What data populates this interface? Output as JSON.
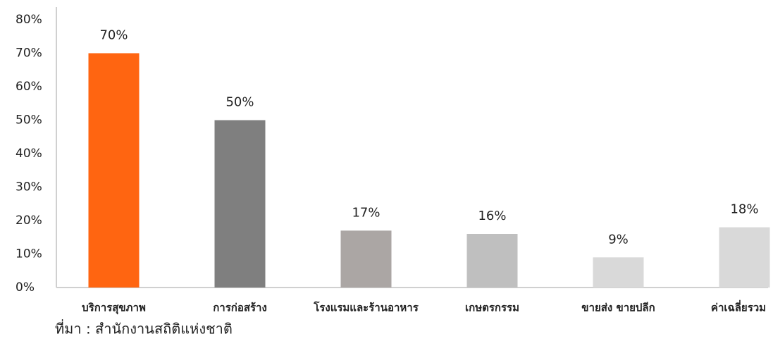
{
  "chart_data": {
    "type": "bar",
    "categories": [
      "บริการสุขภาพ",
      "การก่อสร้าง",
      "โรงแรมและร้านอาหาร",
      "เกษตรกรรม",
      "ขายส่ง ขายปลีก",
      "ค่าเฉลี่ยรวม"
    ],
    "values": [
      70,
      50,
      17,
      16,
      9,
      18
    ],
    "value_labels": [
      "70%",
      "50%",
      "17%",
      "16%",
      "9%",
      "18%"
    ],
    "colors": [
      "#ff6511",
      "#7f7f7f",
      "#aba6a4",
      "#bfbfbf",
      "#d9d9d9",
      "#d9d9d9"
    ],
    "ylim": [
      0,
      80
    ],
    "yticks": [
      {
        "value": 0,
        "label": "0%"
      },
      {
        "value": 10,
        "label": "10%"
      },
      {
        "value": 20,
        "label": "20%"
      },
      {
        "value": 30,
        "label": "30%"
      },
      {
        "value": 40,
        "label": "40%"
      },
      {
        "value": 50,
        "label": "50%"
      },
      {
        "value": 60,
        "label": "60%"
      },
      {
        "value": 70,
        "label": "70%"
      },
      {
        "value": 80,
        "label": "80%"
      }
    ],
    "grid": false,
    "source": "ที่มา : สำนักงานสถิติแห่งชาติ"
  }
}
